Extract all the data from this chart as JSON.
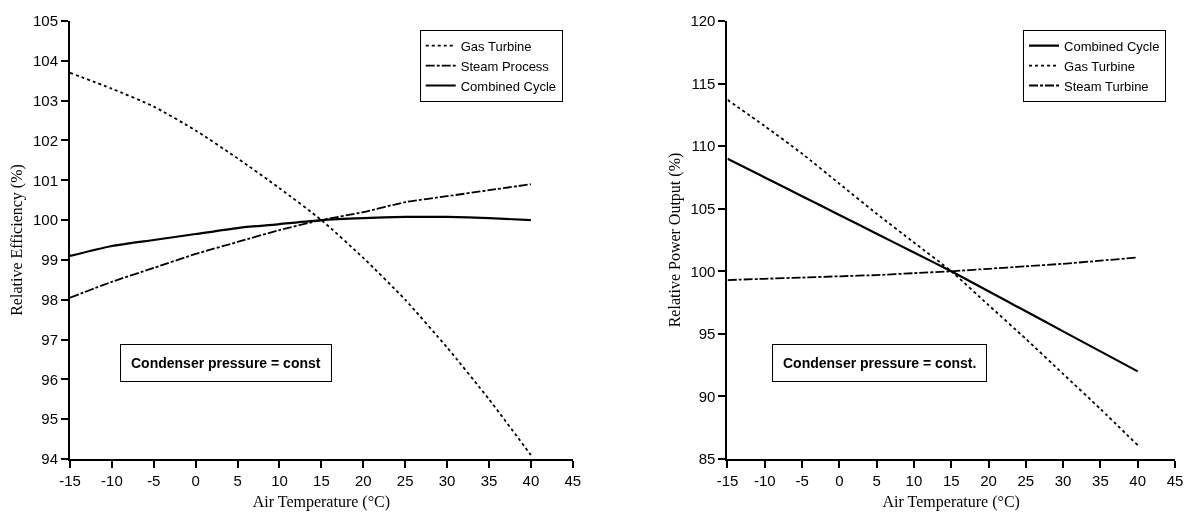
{
  "chart_data": [
    {
      "type": "line",
      "x": [
        -15,
        -10,
        -5,
        0,
        5,
        10,
        15,
        20,
        25,
        30,
        35,
        40
      ],
      "xlabel": "Air Temperature (°C)",
      "ylabel": "Relative Efficiency (%)",
      "xlim": [
        -15,
        45
      ],
      "xticks": [
        -15,
        -10,
        -5,
        0,
        5,
        10,
        15,
        20,
        25,
        30,
        35,
        40,
        45
      ],
      "ylim": [
        94,
        105
      ],
      "yticks": [
        94,
        95,
        96,
        97,
        98,
        99,
        100,
        101,
        102,
        103,
        104,
        105
      ],
      "legend": "top right",
      "marker": "none",
      "series": [
        {
          "name": "Gas Turbine",
          "color": "#000000",
          "line_style": "dotted",
          "values": [
            103.7,
            103.3,
            102.85,
            102.25,
            101.55,
            100.8,
            100.0,
            99.05,
            98.0,
            96.8,
            95.5,
            94.1
          ]
        },
        {
          "name": "Steam Process",
          "color": "#000000",
          "line_style": "dashed",
          "values": [
            98.05,
            98.45,
            98.8,
            99.15,
            99.45,
            99.75,
            100.0,
            100.2,
            100.45,
            100.6,
            100.75,
            100.9
          ]
        },
        {
          "name": "Combined Cycle",
          "color": "#000000",
          "line_style": "solid",
          "values": [
            99.1,
            99.35,
            99.5,
            99.65,
            99.8,
            99.9,
            100.0,
            100.05,
            100.08,
            100.08,
            100.05,
            100.0
          ]
        }
      ],
      "annotations": [
        "Condenser pressure = const"
      ]
    },
    {
      "type": "line",
      "x": [
        -15,
        -10,
        -5,
        0,
        5,
        10,
        15,
        20,
        25,
        30,
        35,
        40
      ],
      "xlabel": "Air Temperature (°C)",
      "ylabel": "Relative Power Output (%)",
      "xlim": [
        -15,
        45
      ],
      "xticks": [
        -15,
        -10,
        -5,
        0,
        5,
        10,
        15,
        20,
        25,
        30,
        35,
        40,
        45
      ],
      "ylim": [
        85,
        120
      ],
      "yticks": [
        85,
        90,
        95,
        100,
        105,
        110,
        115,
        120
      ],
      "legend": "top right",
      "marker": "none",
      "series": [
        {
          "name": "Combined Cycle",
          "color": "#000000",
          "line_style": "solid",
          "values": [
            109,
            107.5,
            106,
            104.5,
            103,
            101.5,
            100,
            98.4,
            96.8,
            95.2,
            93.6,
            92
          ]
        },
        {
          "name": "Gas Turbine",
          "color": "#000000",
          "line_style": "dotted",
          "values": [
            113.7,
            111.6,
            109.4,
            107,
            104.6,
            102.3,
            100,
            97.3,
            94.6,
            91.8,
            89.0,
            86.1
          ]
        },
        {
          "name": "Steam Turbine",
          "color": "#000000",
          "line_style": "dashed",
          "values": [
            99.3,
            99.4,
            99.5,
            99.6,
            99.7,
            99.85,
            100,
            100.2,
            100.4,
            100.6,
            100.85,
            101.1
          ]
        }
      ],
      "annotations": [
        "Condenser pressure = const."
      ]
    }
  ]
}
